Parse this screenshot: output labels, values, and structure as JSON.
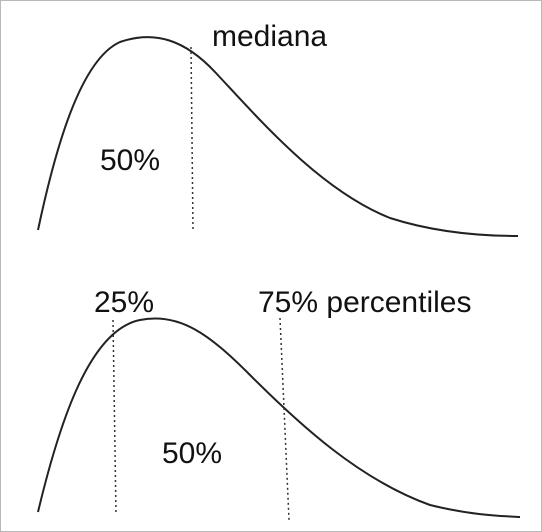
{
  "top_panel": {
    "median_label": "mediana",
    "area_label": "50%"
  },
  "bottom_panel": {
    "p25_label": "25%",
    "p75_label": "75% percentiles",
    "area_label": "50%"
  },
  "colors": {
    "curve": "#222222",
    "marker": "#333333",
    "background": "#ffffff",
    "border": "#b8b8b8"
  }
}
